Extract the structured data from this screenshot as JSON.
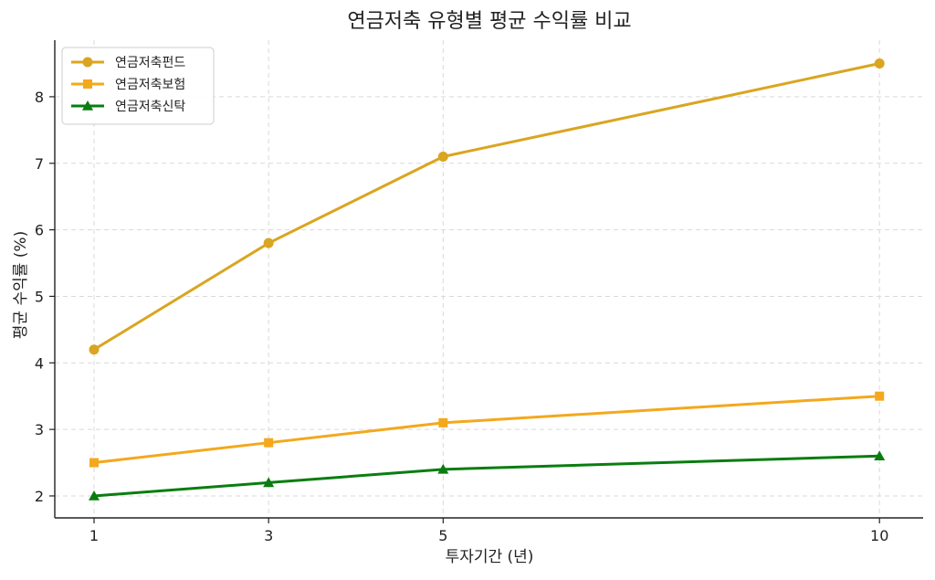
{
  "chart_data": {
    "type": "line",
    "title": "연금저축 유형별 평균 수익률 비교",
    "xlabel": "투자기간 (년)",
    "ylabel": "평균 수익률 (%)",
    "x": [
      1,
      3,
      5,
      10
    ],
    "x_ticks": [
      "1",
      "3",
      "5",
      "10"
    ],
    "y_ticks": [
      "2",
      "3",
      "4",
      "5",
      "6",
      "7",
      "8"
    ],
    "xlim": [
      0.55,
      10.5
    ],
    "ylim": [
      1.67,
      8.85
    ],
    "grid": true,
    "legend_position": "top-left",
    "series": [
      {
        "name": "연금저축펀드",
        "values": [
          4.2,
          5.8,
          7.1,
          8.5
        ],
        "color": "#DAA520",
        "marker": "circle"
      },
      {
        "name": "연금저축보험",
        "values": [
          2.5,
          2.8,
          3.1,
          3.5
        ],
        "color": "#F4A81D",
        "marker": "square"
      },
      {
        "name": "연금저축신탁",
        "values": [
          2.0,
          2.2,
          2.4,
          2.6
        ],
        "color": "#0A7D10",
        "marker": "triangle"
      }
    ]
  }
}
